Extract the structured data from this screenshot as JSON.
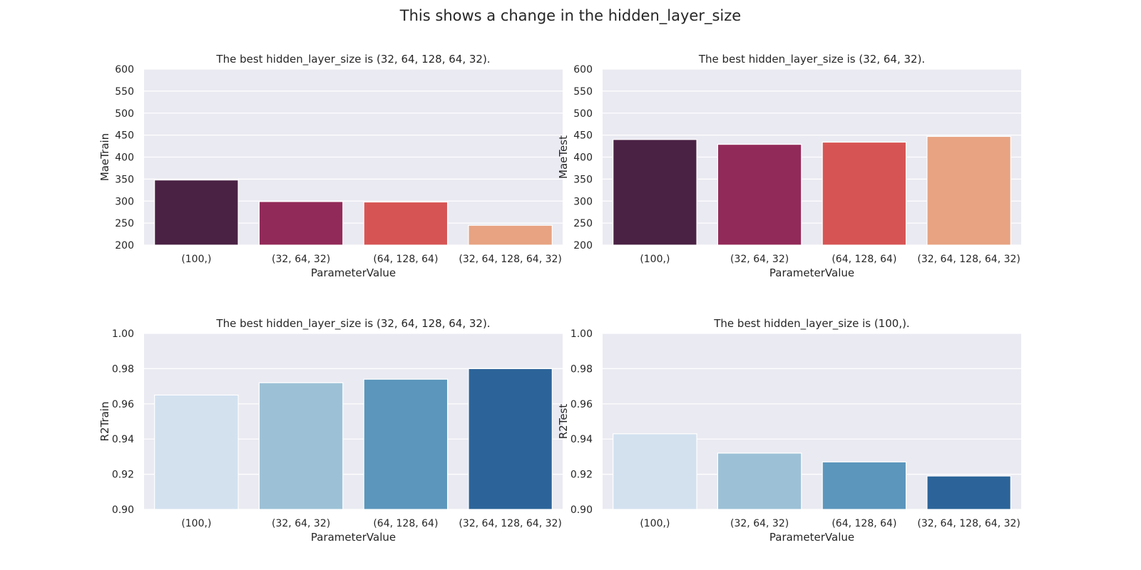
{
  "figure": {
    "title": "This shows a change in the hidden_layer_size"
  },
  "chart_data": [
    {
      "type": "bar",
      "title": "The best hidden_layer_size is (32, 64, 128, 64, 32).",
      "xlabel": "ParameterValue",
      "ylabel": "MaeTrain",
      "categories": [
        "(100,)",
        "(32, 64, 32)",
        "(64, 128, 64)",
        "(32, 64, 128, 64, 32)"
      ],
      "values": [
        348,
        299,
        298,
        245
      ],
      "ylim": [
        200,
        600
      ],
      "yticks": [
        "200",
        "250",
        "300",
        "350",
        "400",
        "450",
        "500",
        "550",
        "600"
      ],
      "colors": [
        "#4a2244",
        "#922a59",
        "#d65554",
        "#e7a382"
      ],
      "grid": true
    },
    {
      "type": "bar",
      "title": "The best hidden_layer_size is (32, 64, 32).",
      "xlabel": "ParameterValue",
      "ylabel": "MaeTest",
      "categories": [
        "(100,)",
        "(32, 64, 32)",
        "(64, 128, 64)",
        "(32, 64, 128, 64, 32)"
      ],
      "values": [
        440,
        429,
        434,
        447
      ],
      "ylim": [
        200,
        600
      ],
      "yticks": [
        "200",
        "250",
        "300",
        "350",
        "400",
        "450",
        "500",
        "550",
        "600"
      ],
      "colors": [
        "#4a2244",
        "#922a59",
        "#d65554",
        "#e7a382"
      ],
      "grid": true
    },
    {
      "type": "bar",
      "title": "The best hidden_layer_size is (32, 64, 128, 64, 32).",
      "xlabel": "ParameterValue",
      "ylabel": "R2Train",
      "categories": [
        "(100,)",
        "(32, 64, 32)",
        "(64, 128, 64)",
        "(32, 64, 128, 64, 32)"
      ],
      "values": [
        0.965,
        0.972,
        0.974,
        0.98
      ],
      "ylim": [
        0.9,
        1.0
      ],
      "yticks": [
        "0.90",
        "0.92",
        "0.94",
        "0.96",
        "0.98",
        "1.00"
      ],
      "colors": [
        "#d3e1ef",
        "#9cc1d6",
        "#5c96bc",
        "#2c6499"
      ],
      "grid": true
    },
    {
      "type": "bar",
      "title": "The best hidden_layer_size is (100,).",
      "xlabel": "ParameterValue",
      "ylabel": "R2Test",
      "categories": [
        "(100,)",
        "(32, 64, 32)",
        "(64, 128, 64)",
        "(32, 64, 128, 64, 32)"
      ],
      "values": [
        0.943,
        0.932,
        0.927,
        0.919
      ],
      "ylim": [
        0.9,
        1.0
      ],
      "yticks": [
        "0.90",
        "0.92",
        "0.94",
        "0.96",
        "0.98",
        "1.00"
      ],
      "colors": [
        "#d3e1ef",
        "#9cc1d6",
        "#5c96bc",
        "#2c6499"
      ],
      "grid": true
    }
  ]
}
